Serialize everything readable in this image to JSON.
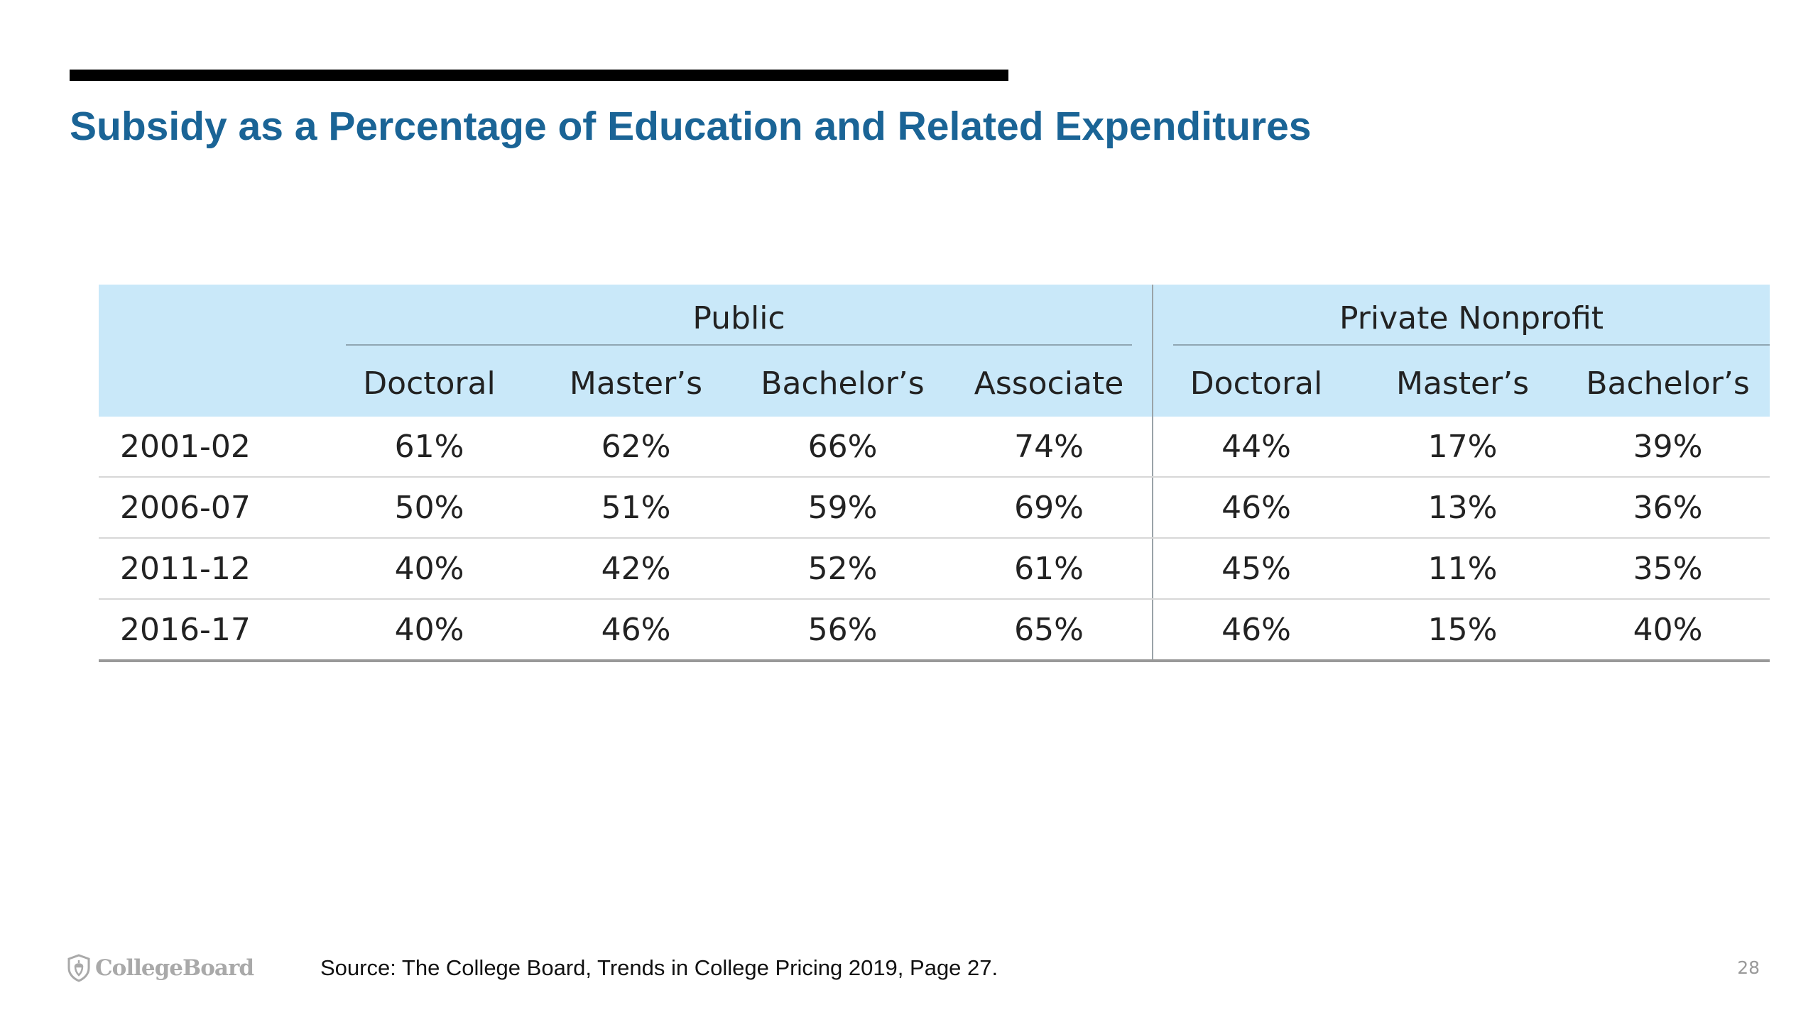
{
  "slide": {
    "title": "Subsidy as a Percentage of Education and Related Expenditures",
    "source": "Source: The College Board, Trends in College Pricing 2019, Page 27.",
    "page_number": "28",
    "logo_text": "CollegeBoard",
    "logo_icon": "shield-acorn-icon",
    "colors": {
      "title": "#1a6496",
      "header_fill": "#c9e8f9",
      "top_rule": "#000000"
    }
  },
  "table": {
    "groups": [
      {
        "label": "Public",
        "columns": [
          "Doctoral",
          "Master’s",
          "Bachelor’s",
          "Associate"
        ]
      },
      {
        "label": "Private Nonprofit",
        "columns": [
          "Doctoral",
          "Master’s",
          "Bachelor’s"
        ]
      }
    ],
    "rows": [
      {
        "year": "2001-02",
        "values": [
          "61%",
          "62%",
          "66%",
          "74%",
          "44%",
          "17%",
          "39%"
        ]
      },
      {
        "year": "2006-07",
        "values": [
          "50%",
          "51%",
          "59%",
          "69%",
          "46%",
          "13%",
          "36%"
        ]
      },
      {
        "year": "2011-12",
        "values": [
          "40%",
          "42%",
          "52%",
          "61%",
          "45%",
          "11%",
          "35%"
        ]
      },
      {
        "year": "2016-17",
        "values": [
          "40%",
          "46%",
          "56%",
          "65%",
          "46%",
          "15%",
          "40%"
        ]
      }
    ]
  }
}
